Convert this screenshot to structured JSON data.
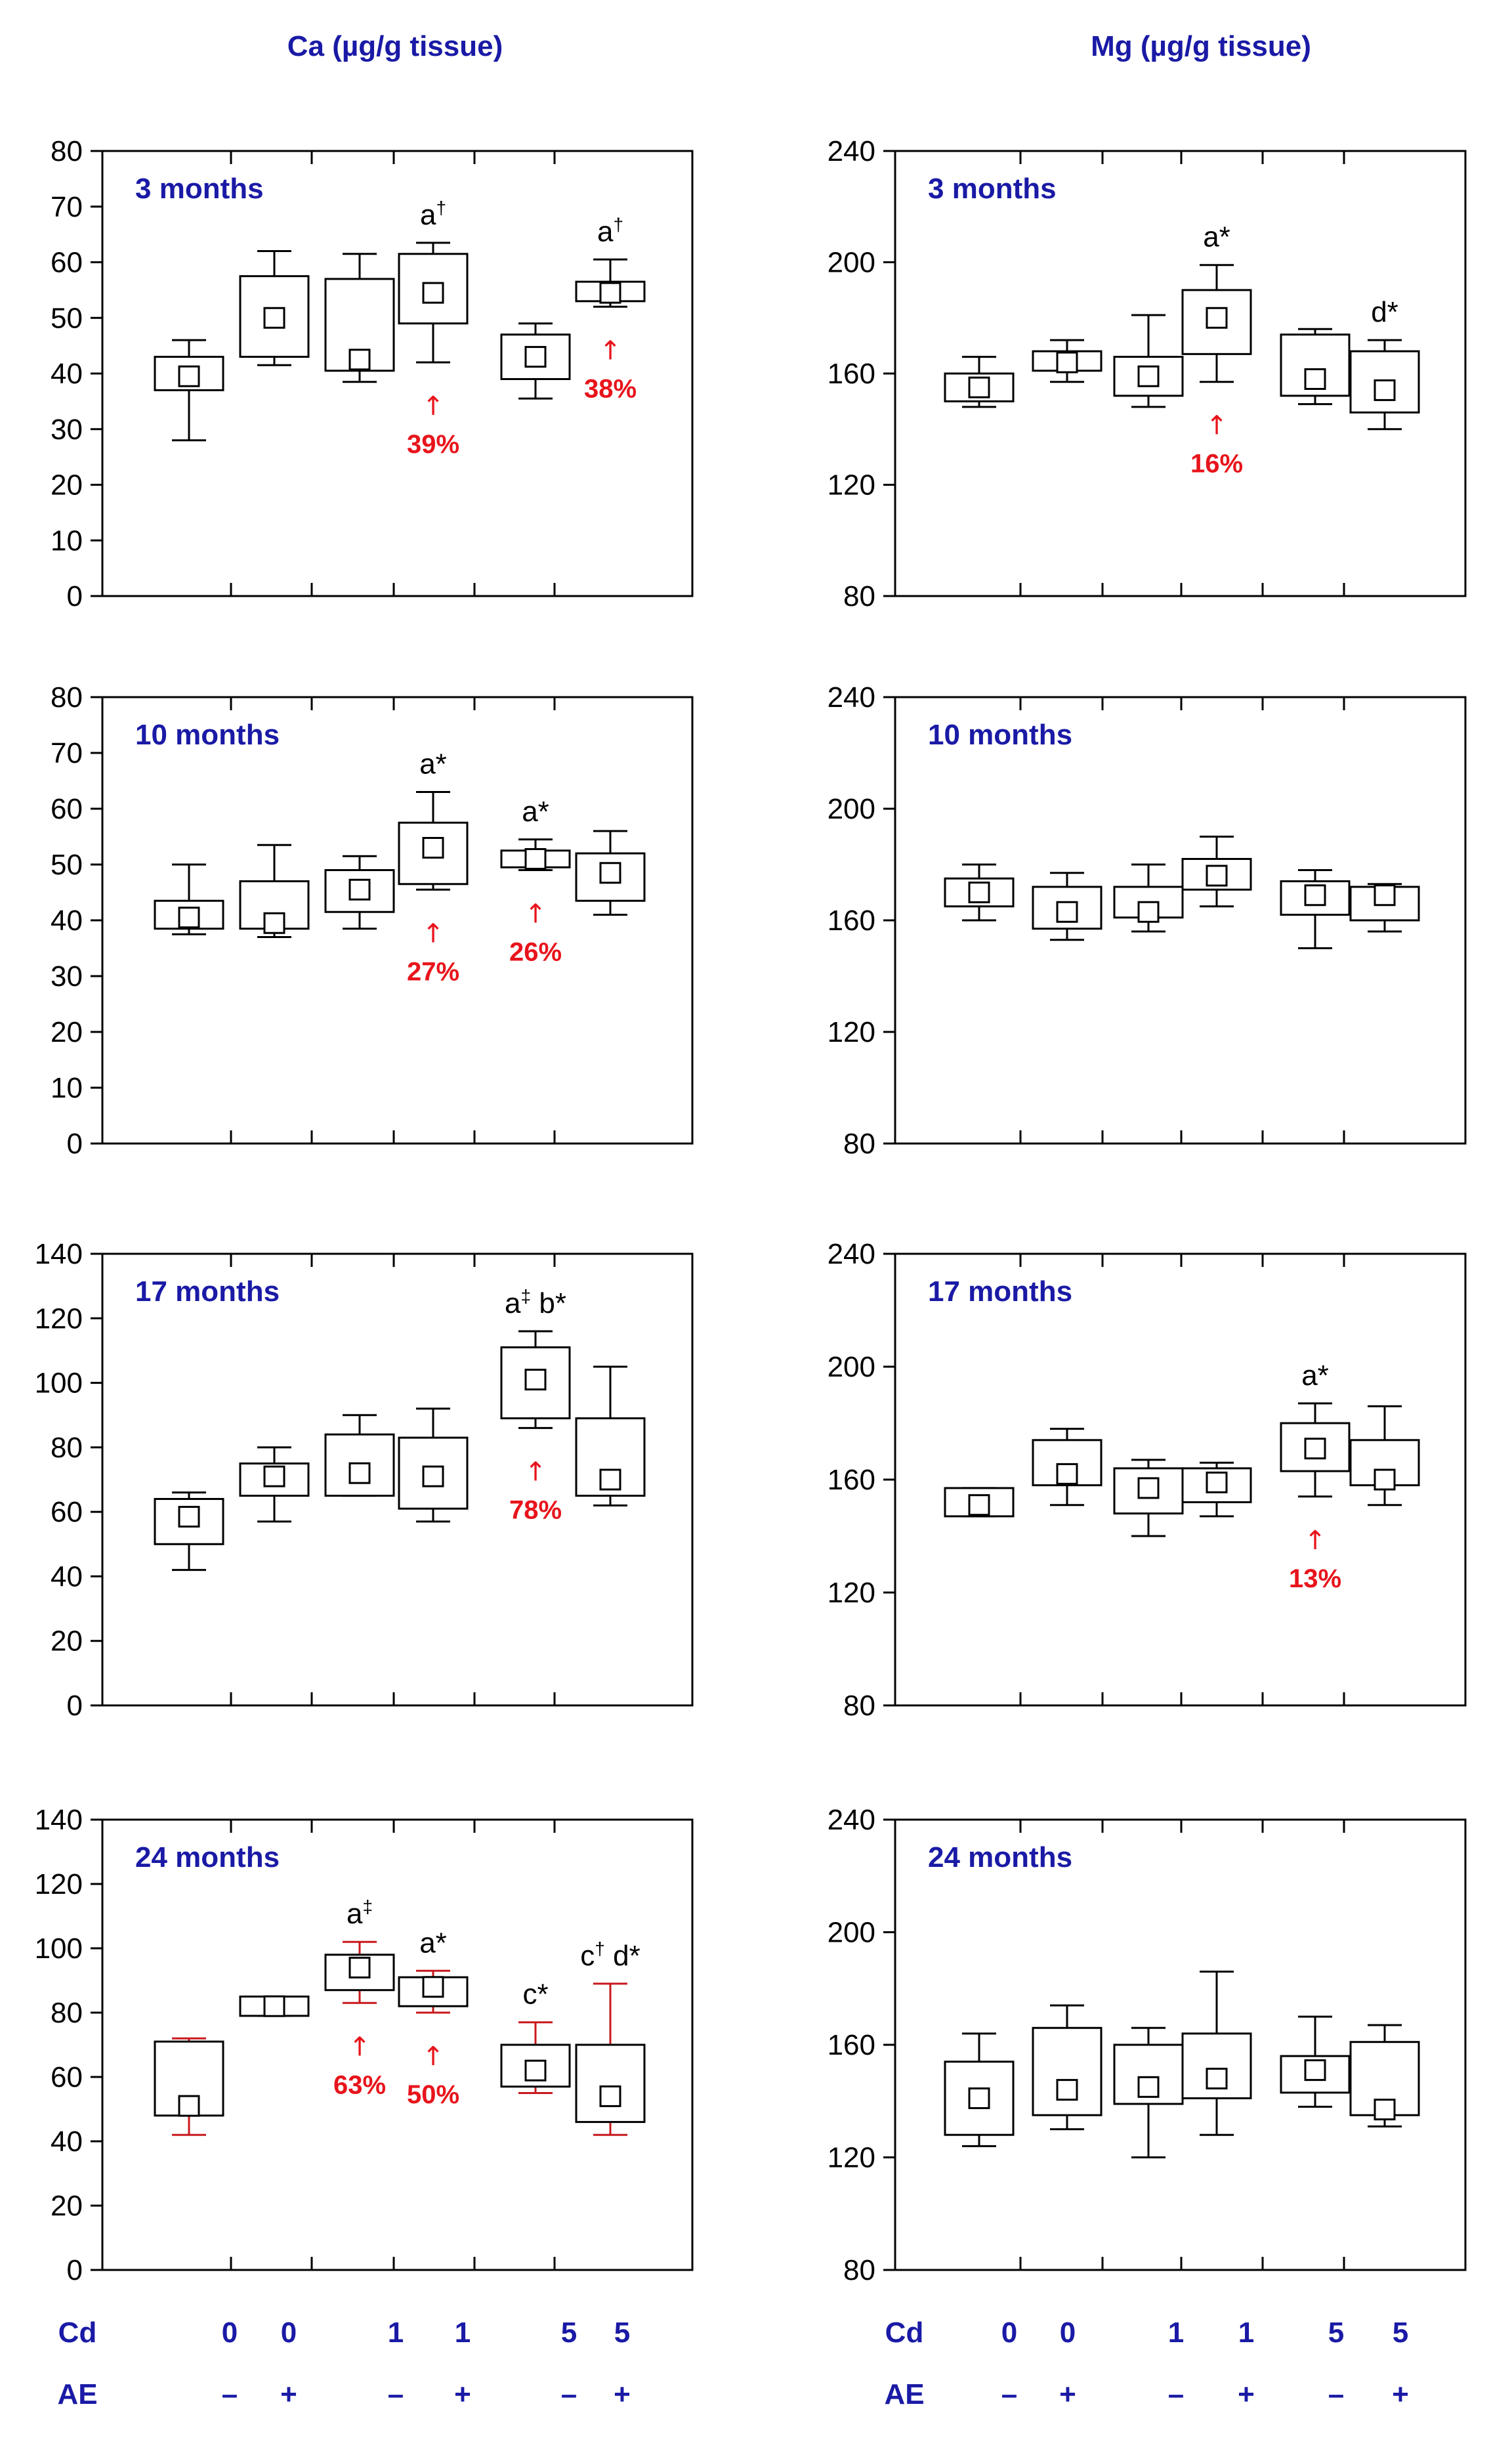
{
  "titles": {
    "ca": "Ca (µg/g tissue)",
    "mg": "Mg (µg/g tissue)"
  },
  "x_rows": {
    "cd_label": "Cd",
    "ae_label": "AE",
    "cd_values": [
      "0",
      "0",
      "1",
      "1",
      "5",
      "5"
    ],
    "ae_values": [
      "–",
      "+",
      "–",
      "+",
      "–",
      "+"
    ]
  },
  "chart_data": [
    {
      "type": "box",
      "column": "Ca",
      "row": 0,
      "label": "3 months",
      "ylim": [
        0,
        80
      ],
      "ticks": [
        0,
        10,
        20,
        30,
        40,
        50,
        60,
        70,
        80
      ],
      "groups": [
        {
          "cd": "0",
          "ae": "–",
          "q1": 37,
          "q3": 43,
          "median": 39.5,
          "min": 28,
          "max": 46
        },
        {
          "cd": "0",
          "ae": "+",
          "q1": 43,
          "q3": 57.5,
          "median": 50,
          "min": 41.5,
          "max": 62
        },
        {
          "cd": "1",
          "ae": "–",
          "q1": 40.5,
          "q3": 57,
          "median": 42.5,
          "min": 38.5,
          "max": 61.5
        },
        {
          "cd": "1",
          "ae": "+",
          "q1": 49,
          "q3": 61.5,
          "median": 54.5,
          "min": 42,
          "max": 63.5,
          "annot": "a",
          "sup": "†",
          "pct": "39%"
        },
        {
          "cd": "5",
          "ae": "–",
          "q1": 39,
          "q3": 47,
          "median": 43,
          "min": 35.5,
          "max": 49
        },
        {
          "cd": "5",
          "ae": "+",
          "q1": 53,
          "q3": 56.5,
          "median": 54.5,
          "min": 52,
          "max": 60.5,
          "annot": "a",
          "sup": "†",
          "pct": "38%"
        }
      ]
    },
    {
      "type": "box",
      "column": "Mg",
      "row": 0,
      "label": "3 months",
      "ylim": [
        80,
        240
      ],
      "ticks": [
        80,
        120,
        160,
        200,
        240
      ],
      "groups": [
        {
          "cd": "0",
          "ae": "–",
          "q1": 150,
          "q3": 160,
          "median": 155,
          "min": 148,
          "max": 166
        },
        {
          "cd": "0",
          "ae": "+",
          "q1": 161,
          "q3": 168,
          "median": 164,
          "min": 157,
          "max": 172
        },
        {
          "cd": "1",
          "ae": "–",
          "q1": 152,
          "q3": 166,
          "median": 159,
          "min": 148,
          "max": 181
        },
        {
          "cd": "1",
          "ae": "+",
          "q1": 167,
          "q3": 190,
          "median": 180,
          "min": 157,
          "max": 199,
          "annot": "a",
          "sup": "*",
          "pct": "16%"
        },
        {
          "cd": "5",
          "ae": "–",
          "q1": 152,
          "q3": 174,
          "median": 158,
          "min": 149,
          "max": 176
        },
        {
          "cd": "5",
          "ae": "+",
          "q1": 146,
          "q3": 168,
          "median": 154,
          "min": 140,
          "max": 172,
          "annot": "d",
          "sup": "*"
        }
      ]
    },
    {
      "type": "box",
      "column": "Ca",
      "row": 1,
      "label": "10 months",
      "ylim": [
        0,
        80
      ],
      "ticks": [
        0,
        10,
        20,
        30,
        40,
        50,
        60,
        70,
        80
      ],
      "groups": [
        {
          "cd": "0",
          "ae": "–",
          "q1": 38.5,
          "q3": 43.5,
          "median": 40.5,
          "min": 37.5,
          "max": 50
        },
        {
          "cd": "0",
          "ae": "+",
          "q1": 38.5,
          "q3": 47,
          "median": 39.5,
          "min": 37,
          "max": 53.5
        },
        {
          "cd": "1",
          "ae": "–",
          "q1": 41.5,
          "q3": 49,
          "median": 45.5,
          "min": 38.5,
          "max": 51.5
        },
        {
          "cd": "1",
          "ae": "+",
          "q1": 46.5,
          "q3": 57.5,
          "median": 53,
          "min": 45.5,
          "max": 63,
          "annot": "a",
          "sup": "*",
          "pct": "27%"
        },
        {
          "cd": "5",
          "ae": "–",
          "q1": 49.5,
          "q3": 52.5,
          "median": 51,
          "min": 49,
          "max": 54.5,
          "annot": "a",
          "sup": "*",
          "pct": "26%"
        },
        {
          "cd": "5",
          "ae": "+",
          "q1": 43.5,
          "q3": 52,
          "median": 48.5,
          "min": 41,
          "max": 56
        }
      ]
    },
    {
      "type": "box",
      "column": "Mg",
      "row": 1,
      "label": "10 months",
      "ylim": [
        80,
        240
      ],
      "ticks": [
        80,
        120,
        160,
        200,
        240
      ],
      "groups": [
        {
          "cd": "0",
          "ae": "–",
          "q1": 165,
          "q3": 175,
          "median": 170,
          "min": 160,
          "max": 180
        },
        {
          "cd": "0",
          "ae": "+",
          "q1": 157,
          "q3": 172,
          "median": 163,
          "min": 153,
          "max": 177
        },
        {
          "cd": "1",
          "ae": "–",
          "q1": 161,
          "q3": 172,
          "median": 163,
          "min": 156,
          "max": 180
        },
        {
          "cd": "1",
          "ae": "+",
          "q1": 171,
          "q3": 182,
          "median": 176,
          "min": 165,
          "max": 190
        },
        {
          "cd": "5",
          "ae": "–",
          "q1": 162,
          "q3": 174,
          "median": 169,
          "min": 150,
          "max": 178
        },
        {
          "cd": "5",
          "ae": "+",
          "q1": 160,
          "q3": 172,
          "median": 169,
          "min": 156,
          "max": 173
        }
      ]
    },
    {
      "type": "box",
      "column": "Ca",
      "row": 2,
      "label": "17 months",
      "ylim": [
        0,
        140
      ],
      "ticks": [
        0,
        20,
        40,
        60,
        80,
        100,
        120,
        140
      ],
      "groups": [
        {
          "cd": "0",
          "ae": "–",
          "q1": 50,
          "q3": 64,
          "median": 58.5,
          "min": 42,
          "max": 66
        },
        {
          "cd": "0",
          "ae": "+",
          "q1": 65,
          "q3": 75,
          "median": 71,
          "min": 57,
          "max": 80
        },
        {
          "cd": "1",
          "ae": "–",
          "q1": 65,
          "q3": 84,
          "median": 72,
          "min": 65,
          "max": 90
        },
        {
          "cd": "1",
          "ae": "+",
          "q1": 61,
          "q3": 83,
          "median": 71,
          "min": 57,
          "max": 92
        },
        {
          "cd": "5",
          "ae": "–",
          "q1": 89,
          "q3": 111,
          "median": 101,
          "min": 86,
          "max": 116,
          "annot": "a",
          "sup": "‡",
          "annot2": "b",
          "sup2": "*",
          "pct": "78%"
        },
        {
          "cd": "5",
          "ae": "+",
          "q1": 65,
          "q3": 89,
          "median": 70,
          "min": 62,
          "max": 105
        }
      ]
    },
    {
      "type": "box",
      "column": "Mg",
      "row": 2,
      "label": "17 months",
      "ylim": [
        80,
        240
      ],
      "ticks": [
        80,
        120,
        160,
        200,
        240
      ],
      "groups": [
        {
          "cd": "0",
          "ae": "–",
          "q1": 147,
          "q3": 157,
          "median": 151,
          "min": 147,
          "max": 157
        },
        {
          "cd": "0",
          "ae": "+",
          "q1": 158,
          "q3": 174,
          "median": 162,
          "min": 151,
          "max": 178
        },
        {
          "cd": "1",
          "ae": "–",
          "q1": 148,
          "q3": 164,
          "median": 157,
          "min": 140,
          "max": 167
        },
        {
          "cd": "1",
          "ae": "+",
          "q1": 152,
          "q3": 164,
          "median": 159,
          "min": 147,
          "max": 166
        },
        {
          "cd": "5",
          "ae": "–",
          "q1": 163,
          "q3": 180,
          "median": 171,
          "min": 154,
          "max": 187,
          "annot": "a",
          "sup": "*",
          "pct": "13%"
        },
        {
          "cd": "5",
          "ae": "+",
          "q1": 158,
          "q3": 174,
          "median": 160,
          "min": 151,
          "max": 186
        }
      ]
    },
    {
      "type": "box",
      "column": "Ca",
      "row": 3,
      "label": "24 months",
      "ylim": [
        0,
        140
      ],
      "ticks": [
        0,
        20,
        40,
        60,
        80,
        100,
        120,
        140
      ],
      "groups": [
        {
          "cd": "0",
          "ae": "–",
          "q1": 48,
          "q3": 71,
          "median": 51,
          "min": 42,
          "max": 72,
          "red": true
        },
        {
          "cd": "0",
          "ae": "+",
          "q1": 79,
          "q3": 85,
          "median": 82,
          "min": 79,
          "max": 85
        },
        {
          "cd": "1",
          "ae": "–",
          "q1": 87,
          "q3": 98,
          "median": 94,
          "min": 83,
          "max": 102,
          "red": true,
          "annot": "a",
          "sup": "‡",
          "pct": "63%"
        },
        {
          "cd": "1",
          "ae": "+",
          "q1": 82,
          "q3": 91,
          "median": 88,
          "min": 80,
          "max": 93,
          "red": true,
          "annot": "a",
          "sup": "*",
          "pct": "50%"
        },
        {
          "cd": "5",
          "ae": "–",
          "q1": 57,
          "q3": 70,
          "median": 62,
          "min": 55,
          "max": 77,
          "red": true,
          "annot": "c",
          "sup": "*"
        },
        {
          "cd": "5",
          "ae": "+",
          "q1": 46,
          "q3": 70,
          "median": 54,
          "min": 42,
          "max": 89,
          "red": true,
          "annot": "c",
          "sup": "†",
          "annot2": "d",
          "sup2": "*"
        }
      ]
    },
    {
      "type": "box",
      "column": "Mg",
      "row": 3,
      "label": "24 months",
      "ylim": [
        80,
        240
      ],
      "ticks": [
        80,
        120,
        160,
        200,
        240
      ],
      "groups": [
        {
          "cd": "0",
          "ae": "–",
          "q1": 128,
          "q3": 154,
          "median": 141,
          "min": 124,
          "max": 164
        },
        {
          "cd": "0",
          "ae": "+",
          "q1": 135,
          "q3": 166,
          "median": 144,
          "min": 130,
          "max": 174
        },
        {
          "cd": "1",
          "ae": "–",
          "q1": 139,
          "q3": 160,
          "median": 145,
          "min": 120,
          "max": 166
        },
        {
          "cd": "1",
          "ae": "+",
          "q1": 141,
          "q3": 164,
          "median": 148,
          "min": 128,
          "max": 186
        },
        {
          "cd": "5",
          "ae": "–",
          "q1": 143,
          "q3": 156,
          "median": 151,
          "min": 138,
          "max": 170
        },
        {
          "cd": "5",
          "ae": "+",
          "q1": 135,
          "q3": 161,
          "median": 137,
          "min": 131,
          "max": 167
        }
      ]
    }
  ]
}
